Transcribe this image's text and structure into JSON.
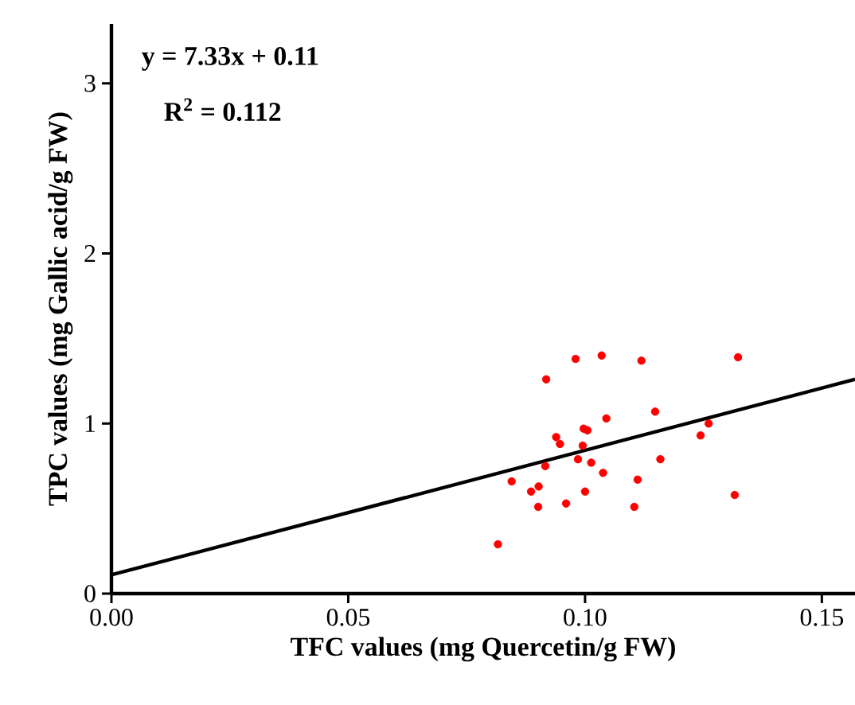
{
  "chart_data": {
    "type": "scatter",
    "xlabel": "TFC values (mg Quercetin/g FW)",
    "ylabel": "TPC values (mg Gallic acid/g FW)",
    "annotations": [
      "**y = 7.33x + 0.11**",
      "**R$^{2}$ = 0.112**"
    ],
    "xlim": [
      0,
      0.157
    ],
    "ylim": [
      0,
      3.35
    ],
    "xticks": [
      {
        "value": 0,
        "label": "0.00"
      },
      {
        "value": 0.05,
        "label": "0.05"
      },
      {
        "value": 0.1,
        "label": "0.10"
      },
      {
        "value": 0.15,
        "label": "0.15"
      }
    ],
    "yticks": [
      0,
      1,
      2,
      3
    ],
    "grid": false,
    "series": [
      {
        "marker": "circle",
        "color": "#ff0000",
        "x": [
          0.0816,
          0.0845,
          0.0886,
          0.0902,
          0.0901,
          0.0916,
          0.0918,
          0.0939,
          0.0947,
          0.096,
          0.098,
          0.0985,
          0.0995,
          0.0997,
          0.1005,
          0.1,
          0.1013,
          0.1035,
          0.1038,
          0.1045,
          0.1104,
          0.1111,
          0.1119,
          0.1148,
          0.1159,
          0.1244,
          0.1261,
          0.1316,
          0.1323
        ],
        "values": [
          0.29,
          0.66,
          0.6,
          0.63,
          0.51,
          0.75,
          1.26,
          0.92,
          0.88,
          0.53,
          1.38,
          0.79,
          0.87,
          0.97,
          0.96,
          0.6,
          0.77,
          1.4,
          0.71,
          1.03,
          0.51,
          0.67,
          1.37,
          1.07,
          0.79,
          0.93,
          1.0,
          0.58,
          1.39
        ]
      },
      {
        "type": "line",
        "marker": "none",
        "color": "#000000",
        "x": [
          0,
          0.157
        ],
        "values": [
          0.11,
          1.26
        ]
      }
    ]
  }
}
